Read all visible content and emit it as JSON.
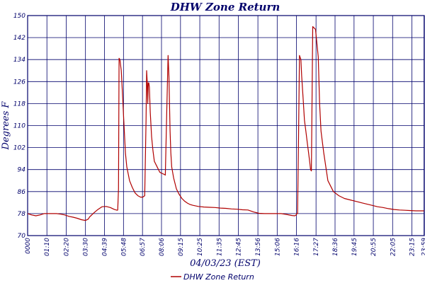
{
  "chart_data": {
    "type": "line",
    "title": "DHW Zone Return",
    "xlabel": "04/03/23 (EST)",
    "ylabel": "Degrees F",
    "ylim": [
      70,
      150
    ],
    "yticks": [
      70,
      78,
      86,
      94,
      102,
      110,
      118,
      126,
      134,
      142,
      150
    ],
    "xlim": [
      0,
      1440
    ],
    "xtick_labels": [
      "0000",
      "01:10",
      "02:20",
      "03:30",
      "04:39",
      "05:48",
      "06:57",
      "08:06",
      "09:15",
      "10:25",
      "11:35",
      "12:45",
      "13:56",
      "15:06",
      "16:16",
      "17:27",
      "18:36",
      "19:45",
      "20:55",
      "22:05",
      "23:15",
      "23:59"
    ],
    "xtick_minutes": [
      0,
      70,
      140,
      210,
      279,
      348,
      417,
      486,
      555,
      625,
      695,
      765,
      836,
      906,
      976,
      1047,
      1116,
      1185,
      1255,
      1325,
      1395,
      1439
    ],
    "grid": true,
    "legend_position": "bottom",
    "series": [
      {
        "name": "DHW Zone Return",
        "color": "#b00000",
        "x": [
          0,
          15,
          30,
          45,
          60,
          75,
          90,
          105,
          120,
          135,
          150,
          165,
          180,
          195,
          210,
          220,
          225,
          240,
          255,
          270,
          285,
          300,
          315,
          325,
          327,
          330,
          332,
          335,
          340,
          345,
          350,
          355,
          360,
          370,
          380,
          390,
          400,
          410,
          418,
          425,
          430,
          432,
          434,
          436,
          438,
          440,
          442,
          445,
          450,
          455,
          460,
          470,
          480,
          490,
          495,
          500,
          505,
          510,
          513,
          515,
          517,
          520,
          523,
          530,
          540,
          550,
          560,
          570,
          580,
          590,
          600,
          620,
          640,
          660,
          680,
          700,
          720,
          740,
          760,
          780,
          800,
          820,
          840,
          860,
          880,
          900,
          920,
          940,
          960,
          970,
          975,
          977,
          980,
          983,
          987,
          992,
          995,
          1000,
          1005,
          1010,
          1015,
          1020,
          1025,
          1027,
          1030,
          1035,
          1045,
          1055,
          1060,
          1065,
          1075,
          1090,
          1110,
          1130,
          1150,
          1170,
          1190,
          1210,
          1230,
          1250,
          1270,
          1290,
          1310,
          1330,
          1350,
          1370,
          1390,
          1410,
          1439
        ],
        "y": [
          78,
          77.5,
          77.2,
          77.5,
          78,
          78,
          78,
          78,
          77.8,
          77.5,
          77,
          76.7,
          76.3,
          75.8,
          75.5,
          76,
          76.8,
          78.2,
          79.5,
          80.5,
          80.6,
          80.2,
          79.5,
          79.2,
          79.3,
          87,
          134.5,
          134,
          130,
          120,
          110,
          100,
          95,
          90,
          87.5,
          85.5,
          84.5,
          84,
          84,
          84.5,
          112,
          130,
          126,
          118,
          125.5,
          125.5,
          124,
          115,
          106,
          101,
          97,
          95,
          93,
          92.5,
          92.3,
          92,
          115,
          135.5,
          128,
          118,
          108,
          100,
          95,
          91,
          87,
          85,
          83.5,
          82.5,
          81.8,
          81.3,
          81,
          80.6,
          80.4,
          80.3,
          80.2,
          80,
          79.9,
          79.7,
          79.6,
          79.4,
          79.3,
          78.6,
          78.1,
          78,
          78,
          78,
          78,
          77.7,
          77.3,
          77.2,
          77.5,
          78,
          78,
          102,
          135.5,
          134,
          128,
          120,
          112,
          108,
          104,
          100,
          96,
          94,
          93.5,
          146,
          145,
          135,
          118,
          108,
          100,
          90,
          86,
          84.5,
          83.5,
          83,
          82.5,
          82,
          81.5,
          81,
          80.5,
          80.2,
          79.8,
          79.5,
          79.3,
          79.2,
          79.1,
          79,
          79
        ]
      }
    ]
  }
}
